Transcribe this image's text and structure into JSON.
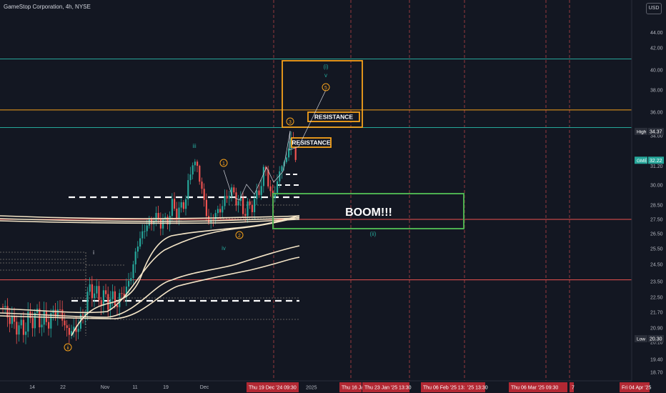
{
  "header": {
    "title": "GameStop Corporation, 4h, NYSE",
    "currency": "USD"
  },
  "chart_data": {
    "type": "candlestick",
    "y_ticks": [
      44.0,
      42.0,
      40.0,
      38.0,
      36.0,
      34.0,
      32.5,
      31.2,
      30.0,
      28.5,
      27.5,
      26.5,
      25.5,
      24.5,
      23.5,
      22.5,
      21.7,
      20.9,
      20.1,
      19.4,
      18.7
    ],
    "x_ticks": [
      {
        "label": "14",
        "x": 0
      },
      {
        "label": "22",
        "x": 1
      },
      {
        "label": "Nov",
        "x": 2
      },
      {
        "label": "11",
        "x": 3
      },
      {
        "label": "19",
        "x": 4
      },
      {
        "label": "Dec",
        "x": 5
      }
    ],
    "date_labels": [
      {
        "label": "Thu 19 Dec '24   09:30",
        "slot": 0
      },
      {
        "label": "2025",
        "slot": 1,
        "plain": true
      },
      {
        "label": "Thu 16 Jan",
        "slot": 2
      },
      {
        "label": "Thu 23 Jan '25   13:30",
        "slot": 3
      },
      {
        "label": "Thu 06 Feb '25   13:30",
        "slot": 4
      },
      {
        "label": "'25   13:30",
        "slot": 5
      },
      {
        "label": "Thu 06 Mar '25   09:30",
        "slot": 6
      },
      {
        "label": "7",
        "slot": 7
      },
      {
        "label": "Fri 04 Apr '25",
        "slot": 8
      }
    ],
    "price_tags": [
      {
        "label": "High",
        "value": "34.37",
        "price": 34.37,
        "kind": "dark"
      },
      {
        "label": "GME",
        "value": "32.22",
        "price": 32.22,
        "kind": "teal"
      },
      {
        "label": "Low",
        "value": "20.30",
        "price": 20.3,
        "kind": "dark"
      }
    ],
    "horizontal_lines": [
      {
        "price": 41.0,
        "color": "#26a69a"
      },
      {
        "price": 36.2,
        "color": "#f7a21b"
      },
      {
        "price": 34.7,
        "color": "#26a69a"
      },
      {
        "price": 27.5,
        "color": "#ef5350"
      },
      {
        "price": 23.6,
        "color": "#ef5350"
      }
    ],
    "annotations": {
      "wave_labels": [
        {
          "text": "i",
          "kind": "plain",
          "color": "#d1d4dc"
        },
        {
          "text": "ii",
          "kind": "circle",
          "color": "#f7a21b"
        },
        {
          "text": "iii",
          "kind": "plain",
          "color": "#26a69a"
        },
        {
          "text": "iv",
          "kind": "plain",
          "color": "#26a69a"
        },
        {
          "text": "1",
          "kind": "circle",
          "color": "#f7a21b"
        },
        {
          "text": "2",
          "kind": "circle",
          "color": "#f7a21b"
        },
        {
          "text": "3",
          "kind": "circle",
          "color": "#f7a21b"
        },
        {
          "text": "5",
          "kind": "circle",
          "color": "#f7a21b"
        },
        {
          "text": "(i)",
          "kind": "plain",
          "color": "#26a69a"
        },
        {
          "text": "v",
          "kind": "plain",
          "color": "#26a69a"
        },
        {
          "text": "(ii)",
          "kind": "plain",
          "color": "#26a69a"
        }
      ],
      "resistance_label": "RESISTANCE",
      "boom_label": "BOOM!!!"
    },
    "colors": {
      "up": "#26a69a",
      "down": "#ef5350",
      "ma": "#f5e6c8",
      "orange": "#f7a21b",
      "green": "#4caf50"
    }
  }
}
